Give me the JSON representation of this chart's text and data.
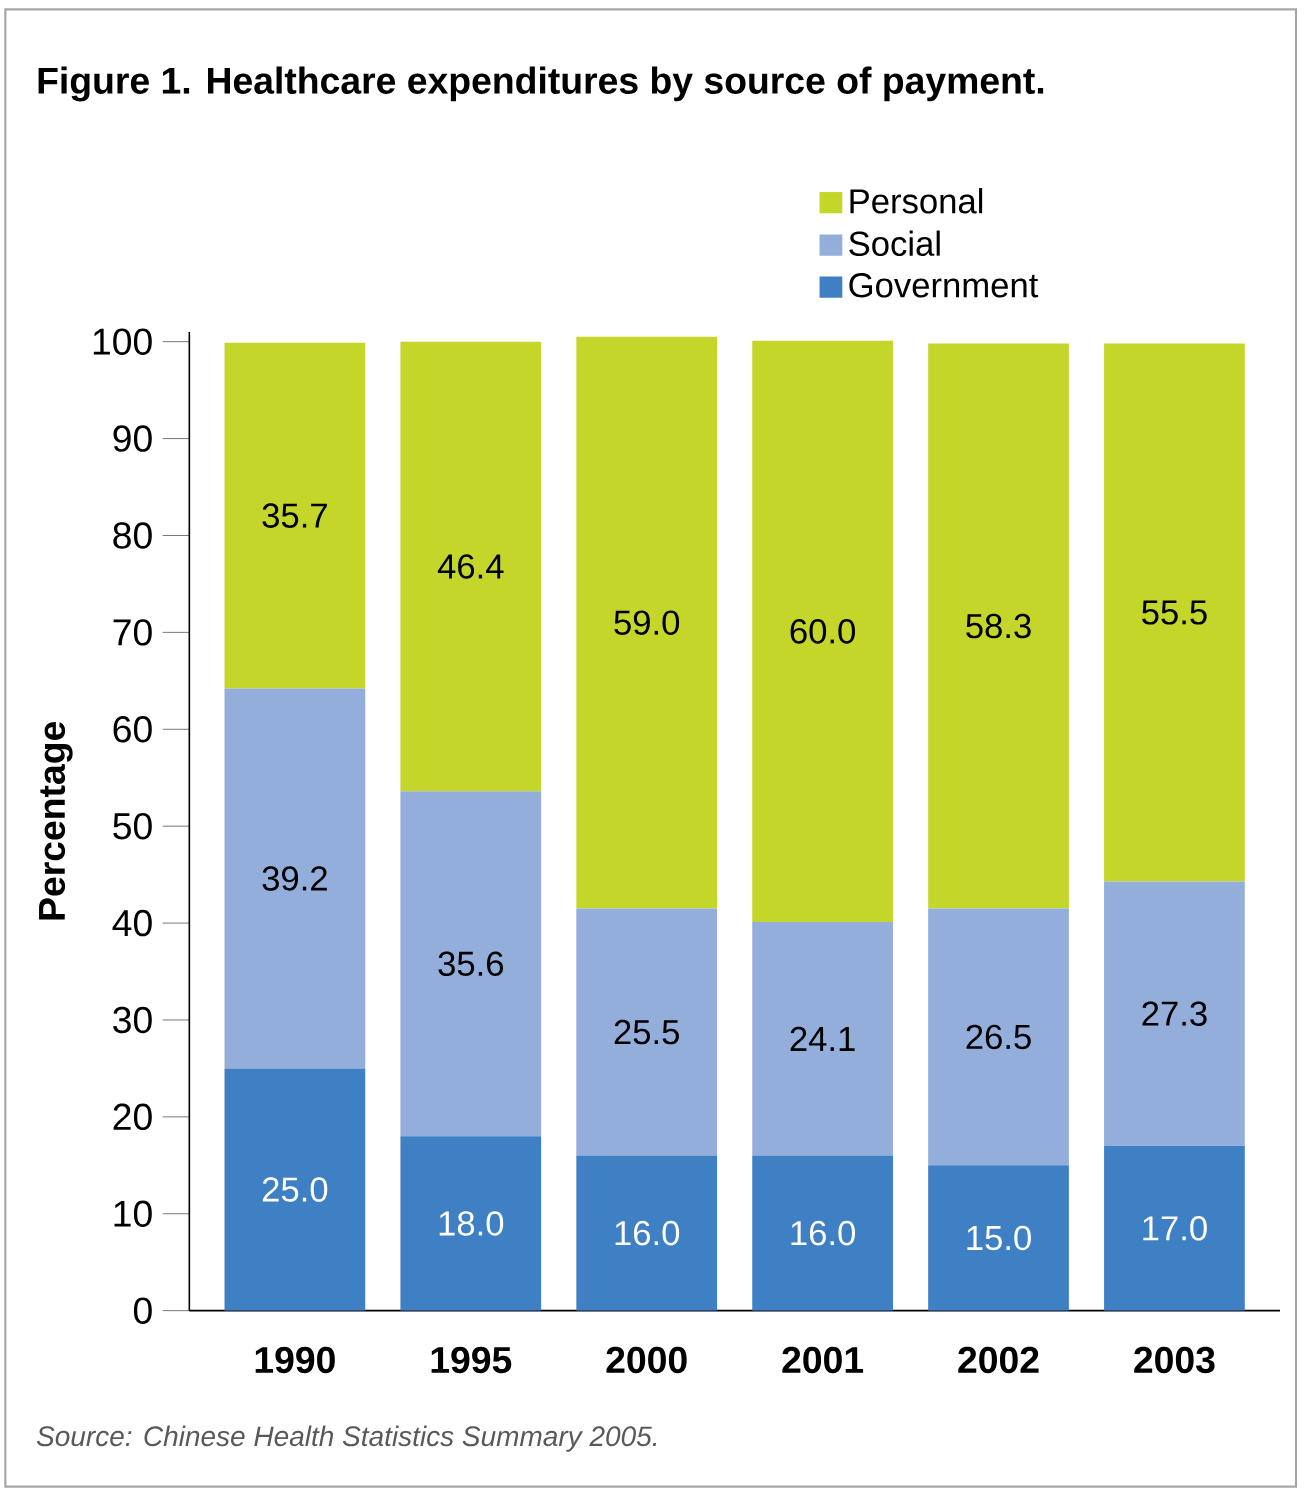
{
  "chart_data": {
    "type": "bar",
    "stacked": true,
    "title": "Figure 1. Healthcare expenditures by source of payment.",
    "ylabel": "Percentage",
    "categories": [
      "1990",
      "1995",
      "2000",
      "2001",
      "2002",
      "2003"
    ],
    "series": [
      {
        "name": "Government",
        "color": "#3f7fc4",
        "values": [
          25.0,
          18.0,
          16.0,
          16.0,
          15.0,
          17.0
        ],
        "value_labels": [
          "25.0",
          "18.0",
          "16.0",
          "16.0",
          "15.0",
          "17.0"
        ]
      },
      {
        "name": "Social",
        "color": "#94aedb",
        "values": [
          39.2,
          35.6,
          25.5,
          24.1,
          26.5,
          27.3
        ],
        "value_labels": [
          "39.2",
          "35.6",
          "25.5",
          "24.1",
          "26.5",
          "27.3"
        ]
      },
      {
        "name": "Personal",
        "color": "#c5d62a",
        "values": [
          35.7,
          46.4,
          59.0,
          60.0,
          58.3,
          55.5
        ],
        "value_labels": [
          "35.7",
          "46.4",
          "59.0",
          "60.0",
          "58.3",
          "55.5"
        ]
      }
    ],
    "ylim": [
      0,
      101
    ],
    "yticks": [
      0,
      10,
      20,
      30,
      40,
      50,
      60,
      70,
      80,
      90,
      100
    ],
    "grid": false,
    "legend": "top",
    "annotations": [
      "Source: Chinese Health Statistics Summary 2005."
    ]
  }
}
